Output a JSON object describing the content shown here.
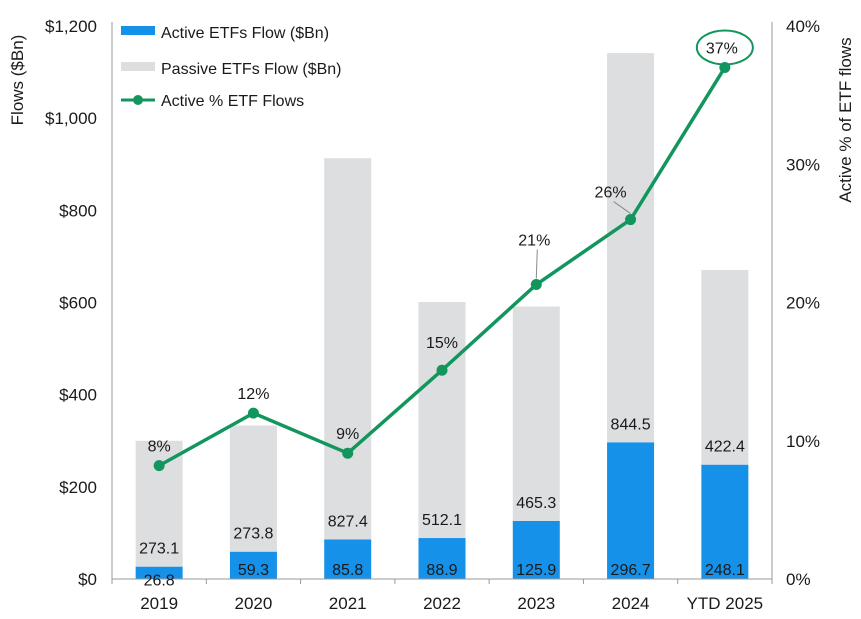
{
  "chart_data": {
    "type": "bar",
    "stacked": true,
    "categories": [
      "2019",
      "2020",
      "2021",
      "2022",
      "2023",
      "2024",
      "YTD 2025"
    ],
    "series": [
      {
        "name": "Active ETFs Flow ($Bn)",
        "type": "bar",
        "color": "#1591ea",
        "values": [
          26.8,
          59.3,
          85.8,
          88.9,
          125.9,
          296.7,
          248.1
        ],
        "labels": [
          "26.8",
          "59.3",
          "85.8",
          "88.9",
          "125.9",
          "296.7",
          "248.1"
        ]
      },
      {
        "name": "Passive ETFs Flow ($Bn)",
        "type": "bar",
        "color": "#dcdee0",
        "values": [
          273.1,
          273.8,
          827.4,
          512.1,
          465.3,
          844.5,
          422.4
        ],
        "labels": [
          "273.1",
          "273.8",
          "827.4",
          "512.1",
          "465.3",
          "844.5",
          "422.4"
        ]
      },
      {
        "name": "Active % ETF Flows",
        "type": "line",
        "axis": "right",
        "color": "#12965e",
        "values": [
          8.2,
          12,
          9.1,
          15.1,
          21.3,
          26,
          37
        ],
        "labels": [
          "8%",
          "12%",
          "9%",
          "15%",
          "21%",
          "26%",
          "37%"
        ]
      }
    ],
    "ylabel": "Flows ($Bn)",
    "ylim": [
      0,
      1200
    ],
    "yticks": [
      0,
      200,
      400,
      600,
      800,
      1000,
      1200
    ],
    "ytick_labels": [
      "$0",
      "$200",
      "$400",
      "$600",
      "$800",
      "$1,000",
      "$1,200"
    ],
    "y2label": "Active % of ETF flows",
    "y2lim": [
      0,
      40
    ],
    "y2ticks": [
      0,
      10,
      20,
      30,
      40
    ],
    "y2tick_labels": [
      "0%",
      "10%",
      "20%",
      "30%",
      "40%"
    ],
    "grid": false,
    "legend": "top-left",
    "highlight": "YTD 2025"
  }
}
